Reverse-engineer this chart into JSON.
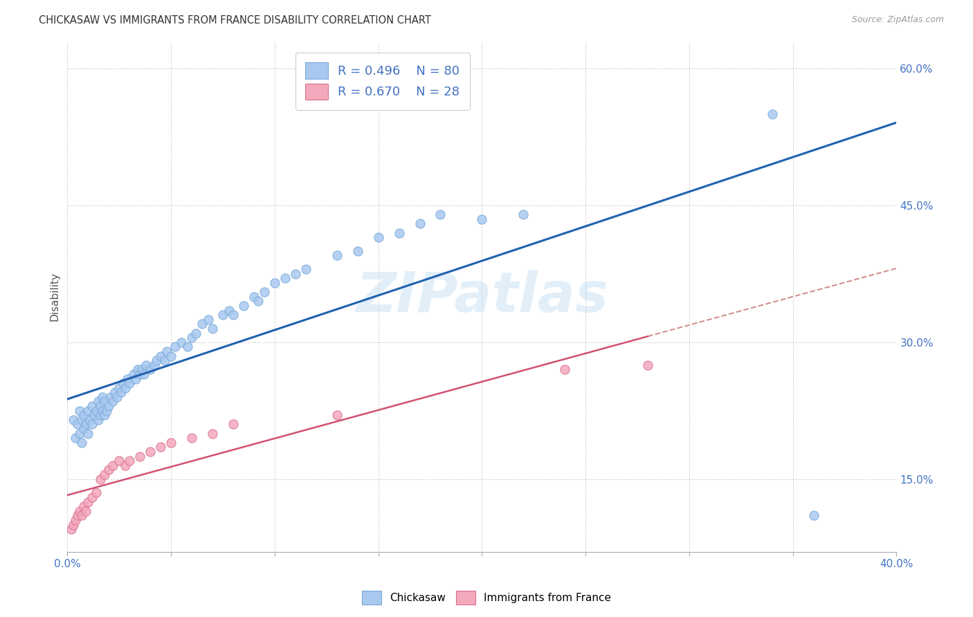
{
  "title": "CHICKASAW VS IMMIGRANTS FROM FRANCE DISABILITY CORRELATION CHART",
  "source": "Source: ZipAtlas.com",
  "ylabel": "Disability",
  "background_color": "#ffffff",
  "watermark": "ZIPatlas",
  "series1_color": "#A8C8F0",
  "series1_edge": "#7AAAD8",
  "series1_label": "Chickasaw",
  "series1_R": "0.496",
  "series1_N": "80",
  "series1_line_color": "#2060B0",
  "series2_color": "#F4A8BC",
  "series2_edge": "#D87090",
  "series2_label": "Immigrants from France",
  "series2_R": "0.670",
  "series2_N": "28",
  "series2_line_color": "#D05070",
  "series2_trendline_color": "#D09090",
  "xlim": [
    0.0,
    0.4
  ],
  "ylim": [
    0.07,
    0.63
  ],
  "yticks": [
    0.15,
    0.3,
    0.45,
    0.6
  ],
  "ytick_labels": [
    "15.0%",
    "30.0%",
    "45.0%",
    "60.0%"
  ],
  "chickasaw_x": [
    0.003,
    0.004,
    0.005,
    0.006,
    0.006,
    0.007,
    0.007,
    0.008,
    0.008,
    0.009,
    0.01,
    0.01,
    0.011,
    0.012,
    0.012,
    0.013,
    0.014,
    0.015,
    0.015,
    0.016,
    0.016,
    0.017,
    0.017,
    0.018,
    0.018,
    0.019,
    0.02,
    0.021,
    0.022,
    0.023,
    0.024,
    0.025,
    0.026,
    0.027,
    0.028,
    0.029,
    0.03,
    0.032,
    0.033,
    0.034,
    0.035,
    0.036,
    0.037,
    0.038,
    0.04,
    0.042,
    0.043,
    0.045,
    0.047,
    0.048,
    0.05,
    0.052,
    0.055,
    0.058,
    0.06,
    0.062,
    0.065,
    0.068,
    0.07,
    0.075,
    0.078,
    0.08,
    0.085,
    0.09,
    0.092,
    0.095,
    0.1,
    0.105,
    0.11,
    0.115,
    0.13,
    0.14,
    0.15,
    0.16,
    0.17,
    0.18,
    0.2,
    0.22,
    0.34,
    0.36
  ],
  "chickasaw_y": [
    0.215,
    0.195,
    0.21,
    0.2,
    0.225,
    0.19,
    0.215,
    0.205,
    0.22,
    0.21,
    0.2,
    0.225,
    0.215,
    0.23,
    0.21,
    0.22,
    0.225,
    0.215,
    0.235,
    0.22,
    0.23,
    0.225,
    0.24,
    0.22,
    0.235,
    0.225,
    0.23,
    0.24,
    0.235,
    0.245,
    0.24,
    0.25,
    0.245,
    0.255,
    0.25,
    0.26,
    0.255,
    0.265,
    0.26,
    0.27,
    0.265,
    0.27,
    0.265,
    0.275,
    0.27,
    0.275,
    0.28,
    0.285,
    0.28,
    0.29,
    0.285,
    0.295,
    0.3,
    0.295,
    0.305,
    0.31,
    0.32,
    0.325,
    0.315,
    0.33,
    0.335,
    0.33,
    0.34,
    0.35,
    0.345,
    0.355,
    0.365,
    0.37,
    0.375,
    0.38,
    0.395,
    0.4,
    0.415,
    0.42,
    0.43,
    0.44,
    0.435,
    0.44,
    0.55,
    0.11
  ],
  "france_x": [
    0.002,
    0.003,
    0.004,
    0.005,
    0.006,
    0.007,
    0.008,
    0.009,
    0.01,
    0.012,
    0.014,
    0.016,
    0.018,
    0.02,
    0.022,
    0.025,
    0.028,
    0.03,
    0.035,
    0.04,
    0.045,
    0.05,
    0.06,
    0.07,
    0.08,
    0.13,
    0.24,
    0.28
  ],
  "france_y": [
    0.095,
    0.1,
    0.105,
    0.11,
    0.115,
    0.11,
    0.12,
    0.115,
    0.125,
    0.13,
    0.135,
    0.15,
    0.155,
    0.16,
    0.165,
    0.17,
    0.165,
    0.17,
    0.175,
    0.18,
    0.185,
    0.19,
    0.195,
    0.2,
    0.21,
    0.22,
    0.27,
    0.275
  ]
}
